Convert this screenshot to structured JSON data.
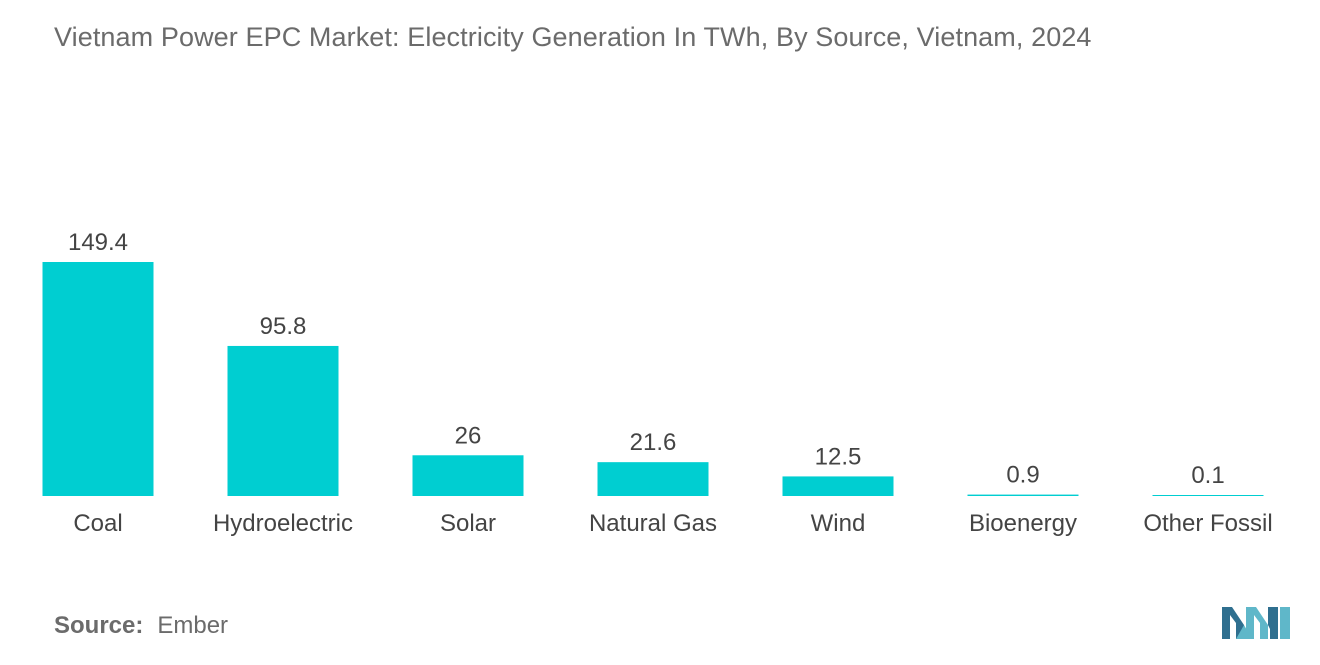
{
  "chart_data": {
    "type": "bar",
    "title": "Vietnam Power EPC Market: Electricity Generation In TWh, By Source, Vietnam, 2024",
    "categories": [
      "Coal",
      "Hydroelectric",
      "Solar",
      "Natural Gas",
      "Wind",
      "Bioenergy",
      "Other Fossil"
    ],
    "values": [
      149.4,
      95.8,
      26,
      21.6,
      12.5,
      0.9,
      0.1
    ],
    "value_labels": [
      "149.4",
      "95.8",
      "26",
      "21.6",
      "12.5",
      "0.9",
      "0.1"
    ],
    "xlabel": "",
    "ylabel": "",
    "ylim": [
      0,
      149.4
    ],
    "grid": false,
    "bar_color": "#00CED1"
  },
  "source": {
    "label": "Source:",
    "value": "Ember"
  },
  "colors": {
    "title": "#6b6b6b",
    "text": "#444444",
    "logo_dark": "#2f6f8f",
    "logo_light": "#5fb7c9"
  }
}
